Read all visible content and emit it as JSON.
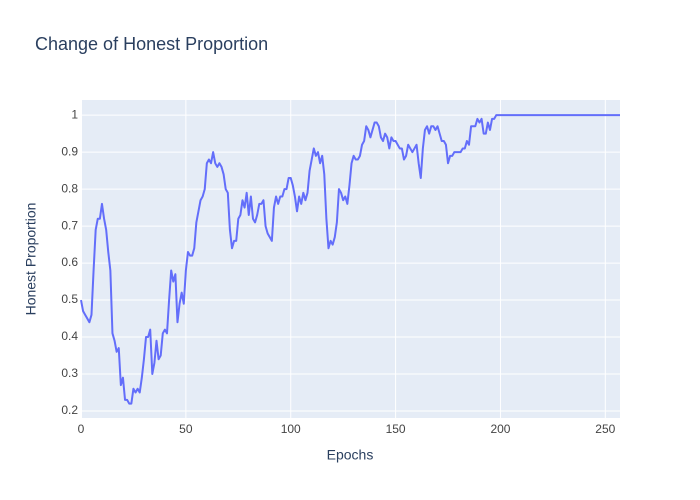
{
  "chart_data": {
    "type": "line",
    "title": "Change of Honest Proportion",
    "x_label": "Epochs",
    "y_label": "Honest Proportion",
    "x": [
      0,
      1,
      2,
      3,
      4,
      5,
      6,
      7,
      8,
      9,
      10,
      11,
      12,
      13,
      14,
      15,
      16,
      17,
      18,
      19,
      20,
      21,
      22,
      23,
      24,
      25,
      26,
      27,
      28,
      29,
      30,
      31,
      32,
      33,
      34,
      35,
      36,
      37,
      38,
      39,
      40,
      41,
      42,
      43,
      44,
      45,
      46,
      47,
      48,
      49,
      50,
      51,
      52,
      53,
      54,
      55,
      56,
      57,
      58,
      59,
      60,
      61,
      62,
      63,
      64,
      65,
      66,
      67,
      68,
      69,
      70,
      71,
      72,
      73,
      74,
      75,
      76,
      77,
      78,
      79,
      80,
      81,
      82,
      83,
      84,
      85,
      86,
      87,
      88,
      89,
      90,
      91,
      92,
      93,
      94,
      95,
      96,
      97,
      98,
      99,
      100,
      101,
      102,
      103,
      104,
      105,
      106,
      107,
      108,
      109,
      110,
      111,
      112,
      113,
      114,
      115,
      116,
      117,
      118,
      119,
      120,
      121,
      122,
      123,
      124,
      125,
      126,
      127,
      128,
      129,
      130,
      131,
      132,
      133,
      134,
      135,
      136,
      137,
      138,
      139,
      140,
      141,
      142,
      143,
      144,
      145,
      146,
      147,
      148,
      149,
      150,
      151,
      152,
      153,
      154,
      155,
      156,
      157,
      158,
      159,
      160,
      161,
      162,
      163,
      164,
      165,
      166,
      167,
      168,
      169,
      170,
      171,
      172,
      173,
      174,
      175,
      176,
      177,
      178,
      179,
      180,
      181,
      182,
      183,
      184,
      185,
      186,
      187,
      188,
      189,
      190,
      191,
      192,
      193,
      194,
      195,
      196,
      197,
      198,
      199,
      200,
      257
    ],
    "series": [
      {
        "color": "#636efa",
        "values": [
          0.5,
          0.47,
          0.46,
          0.45,
          0.44,
          0.46,
          0.58,
          0.69,
          0.72,
          0.72,
          0.76,
          0.72,
          0.69,
          0.63,
          0.58,
          0.41,
          0.39,
          0.36,
          0.37,
          0.27,
          0.29,
          0.23,
          0.23,
          0.22,
          0.22,
          0.26,
          0.25,
          0.26,
          0.25,
          0.29,
          0.34,
          0.4,
          0.4,
          0.42,
          0.3,
          0.33,
          0.39,
          0.34,
          0.35,
          0.41,
          0.42,
          0.41,
          0.5,
          0.58,
          0.55,
          0.57,
          0.44,
          0.49,
          0.52,
          0.49,
          0.58,
          0.63,
          0.62,
          0.62,
          0.64,
          0.71,
          0.74,
          0.77,
          0.78,
          0.8,
          0.87,
          0.88,
          0.87,
          0.9,
          0.87,
          0.86,
          0.87,
          0.86,
          0.84,
          0.8,
          0.79,
          0.69,
          0.64,
          0.66,
          0.66,
          0.72,
          0.73,
          0.77,
          0.75,
          0.79,
          0.73,
          0.78,
          0.72,
          0.71,
          0.73,
          0.76,
          0.76,
          0.77,
          0.7,
          0.68,
          0.67,
          0.66,
          0.75,
          0.78,
          0.76,
          0.78,
          0.78,
          0.8,
          0.8,
          0.83,
          0.83,
          0.81,
          0.78,
          0.74,
          0.78,
          0.76,
          0.79,
          0.77,
          0.79,
          0.85,
          0.88,
          0.91,
          0.89,
          0.9,
          0.87,
          0.89,
          0.84,
          0.72,
          0.64,
          0.66,
          0.65,
          0.67,
          0.71,
          0.8,
          0.79,
          0.77,
          0.78,
          0.76,
          0.81,
          0.87,
          0.89,
          0.88,
          0.88,
          0.89,
          0.92,
          0.93,
          0.97,
          0.96,
          0.94,
          0.96,
          0.98,
          0.98,
          0.97,
          0.94,
          0.93,
          0.95,
          0.94,
          0.91,
          0.94,
          0.93,
          0.93,
          0.92,
          0.91,
          0.91,
          0.88,
          0.89,
          0.92,
          0.91,
          0.9,
          0.91,
          0.92,
          0.87,
          0.83,
          0.91,
          0.96,
          0.97,
          0.95,
          0.97,
          0.97,
          0.96,
          0.97,
          0.95,
          0.93,
          0.93,
          0.92,
          0.87,
          0.89,
          0.89,
          0.9,
          0.9,
          0.9,
          0.9,
          0.91,
          0.91,
          0.93,
          0.92,
          0.97,
          0.97,
          0.97,
          0.99,
          0.98,
          0.99,
          0.95,
          0.95,
          0.98,
          0.96,
          0.99,
          0.99,
          1.0,
          1.0,
          1.0,
          1.0
        ]
      }
    ],
    "xlim": [
      0,
      257
    ],
    "ylim": [
      0.181,
      1.041
    ],
    "xticks": [
      0,
      50,
      100,
      150,
      200,
      250
    ],
    "yticks": [
      0.2,
      0.3,
      0.4,
      0.5,
      0.6,
      0.7,
      0.8,
      0.9,
      1
    ],
    "grid": true
  }
}
